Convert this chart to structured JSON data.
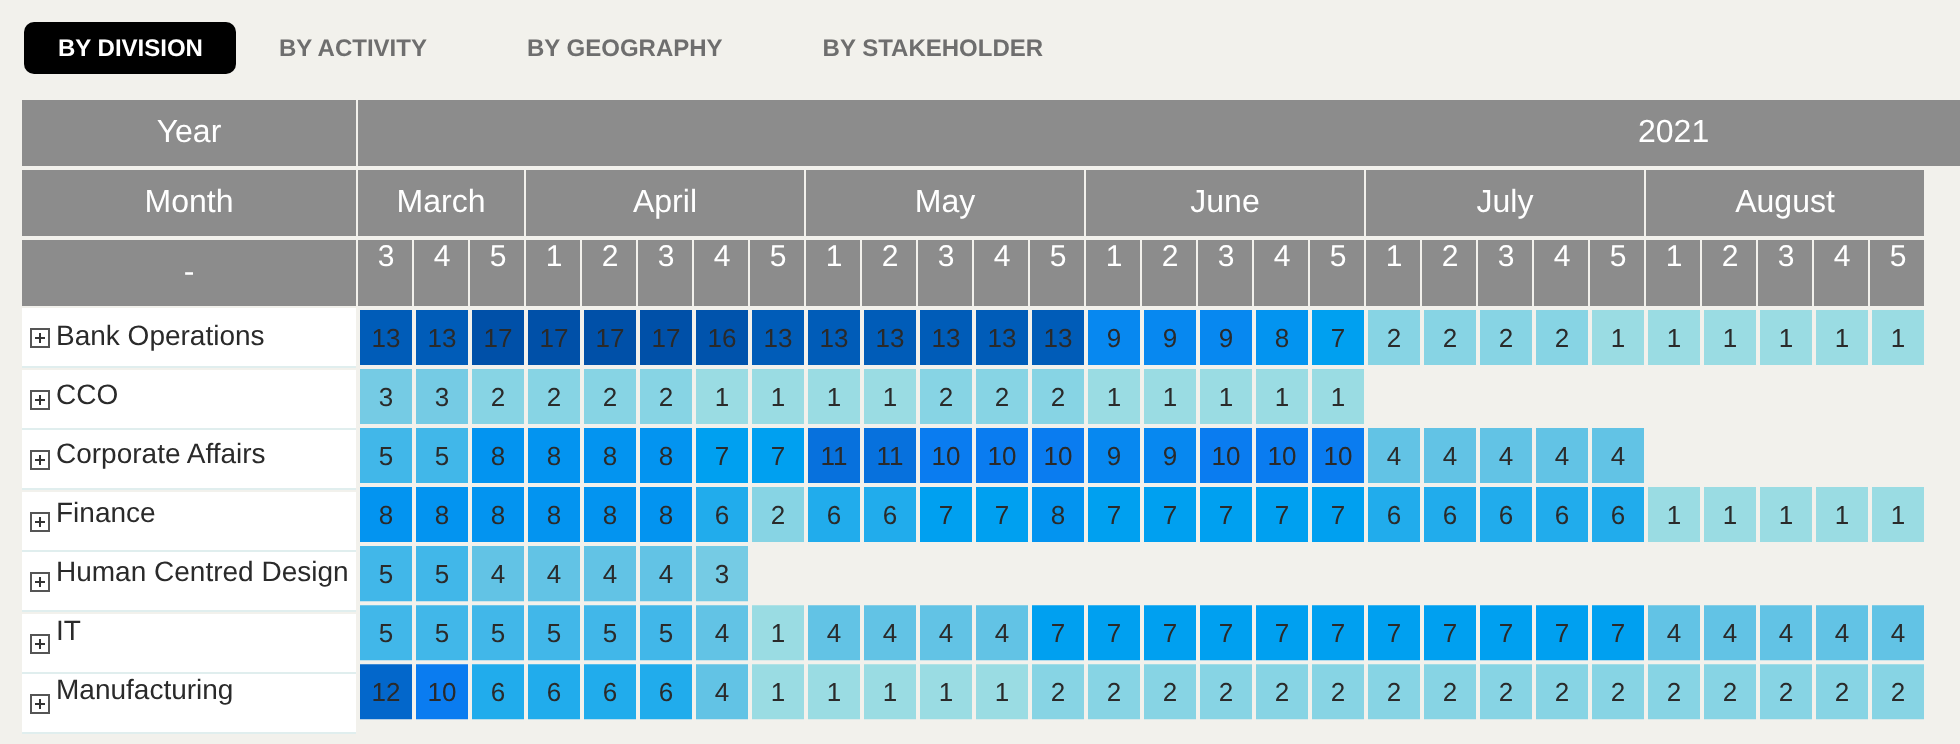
{
  "chart_data": {
    "type": "heatmap",
    "annotations": [
      "BY DIVISION",
      "BY ACTIVITY",
      "BY GEOGRAPHY",
      "BY STAKEHOLDER",
      "Year",
      "2021",
      "Month",
      "-",
      "March",
      "April",
      "May",
      "June",
      "July",
      "August"
    ],
    "categories": [
      "3",
      "4",
      "5",
      "1",
      "2",
      "3",
      "4",
      "5",
      "1",
      "2",
      "3",
      "4",
      "5",
      "1",
      "2",
      "3",
      "4",
      "5",
      "1",
      "2",
      "3",
      "4",
      "5",
      "1",
      "2",
      "3",
      "4",
      "5"
    ],
    "y_categories": [
      "Bank Operations",
      "CCO",
      "Corporate Affairs",
      "Finance",
      "Human Centred Design",
      "IT",
      "Manufacturing"
    ],
    "cells": [
      [
        13,
        13,
        17,
        17,
        17,
        17,
        16,
        13,
        13,
        13,
        13,
        13,
        13,
        9,
        9,
        9,
        8,
        7,
        2,
        2,
        2,
        2,
        1,
        1,
        1,
        1,
        1,
        1
      ],
      [
        3,
        3,
        2,
        2,
        2,
        2,
        1,
        1,
        1,
        1,
        2,
        2,
        2,
        1,
        1,
        1,
        1,
        1,
        null,
        null,
        null,
        null,
        null,
        null,
        null,
        null,
        null,
        null
      ],
      [
        5,
        5,
        8,
        8,
        8,
        8,
        7,
        7,
        11,
        11,
        10,
        10,
        10,
        9,
        9,
        10,
        10,
        10,
        4,
        4,
        4,
        4,
        4,
        null,
        null,
        null,
        null,
        null
      ],
      [
        8,
        8,
        8,
        8,
        8,
        8,
        6,
        2,
        6,
        6,
        7,
        7,
        8,
        7,
        7,
        7,
        7,
        7,
        6,
        6,
        6,
        6,
        6,
        1,
        1,
        1,
        1,
        1
      ],
      [
        5,
        5,
        4,
        4,
        4,
        4,
        3,
        null,
        null,
        null,
        null,
        null,
        null,
        null,
        null,
        null,
        null,
        null,
        null,
        null,
        null,
        null,
        null,
        null,
        null,
        null,
        null,
        null
      ],
      [
        5,
        5,
        5,
        5,
        5,
        5,
        4,
        1,
        4,
        4,
        4,
        4,
        7,
        7,
        7,
        7,
        7,
        7,
        7,
        7,
        7,
        7,
        7,
        4,
        4,
        4,
        4,
        4
      ],
      [
        12,
        10,
        6,
        6,
        6,
        6,
        4,
        1,
        1,
        1,
        1,
        1,
        2,
        2,
        2,
        2,
        2,
        2,
        2,
        2,
        2,
        2,
        2,
        2,
        2,
        2,
        2,
        2
      ]
    ],
    "data_labels": true
  }
}
